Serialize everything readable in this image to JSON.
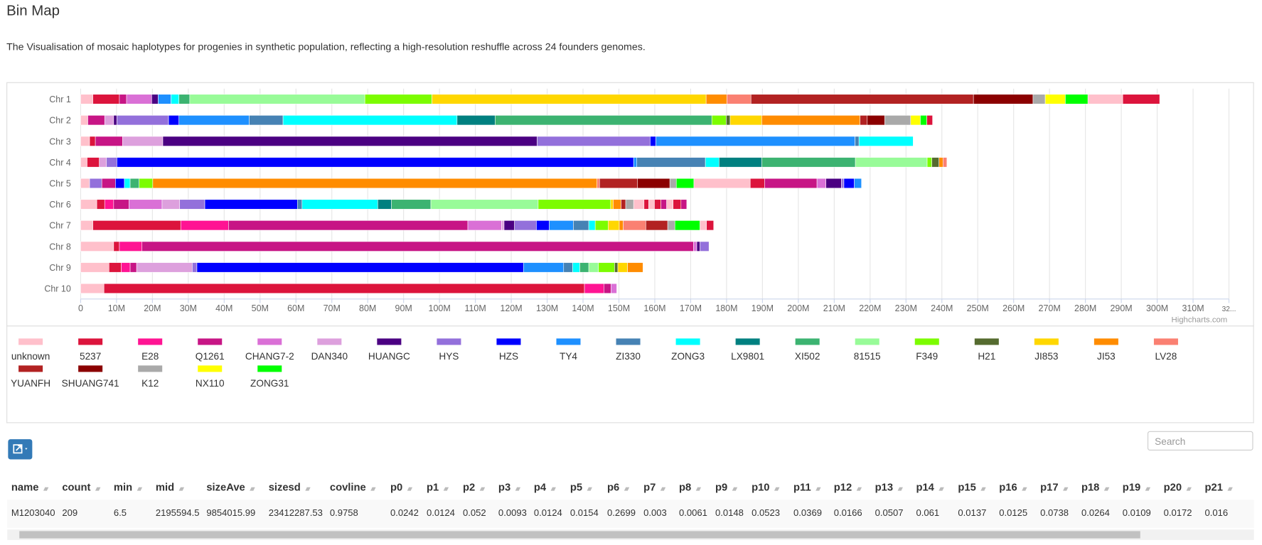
{
  "header": {
    "title": "Bin Map",
    "description": "The Visualisation of mosaic haplotypes for progenies in synthetic population, reflecting a high-resolution reshuffle across 24 founders genomes."
  },
  "chart_data": {
    "type": "bar",
    "orientation": "horizontal",
    "stacked": true,
    "credit": "Highcharts.com",
    "categories": [
      "Chr 1",
      "Chr 2",
      "Chr 3",
      "Chr 4",
      "Chr 5",
      "Chr 6",
      "Chr 7",
      "Chr 8",
      "Chr 9",
      "Chr 10"
    ],
    "xlim": [
      0,
      320
    ],
    "xticks": [
      0,
      {
        "value": 10,
        "label": "10M"
      },
      {
        "value": 20,
        "label": "20M"
      },
      {
        "value": 30,
        "label": "30M"
      },
      {
        "value": 40,
        "label": "40M"
      },
      {
        "value": 50,
        "label": "50M"
      },
      {
        "value": 60,
        "label": "60M"
      },
      {
        "value": 70,
        "label": "70M"
      },
      {
        "value": 80,
        "label": "80M"
      },
      {
        "value": 90,
        "label": "90M"
      },
      {
        "value": 100,
        "label": "100M"
      },
      {
        "value": 110,
        "label": "110M"
      },
      {
        "value": 120,
        "label": "120M"
      },
      {
        "value": 130,
        "label": "130M"
      },
      {
        "value": 140,
        "label": "140M"
      },
      {
        "value": 150,
        "label": "150M"
      },
      {
        "value": 160,
        "label": "160M"
      },
      {
        "value": 170,
        "label": "170M"
      },
      {
        "value": 180,
        "label": "180M"
      },
      {
        "value": 190,
        "label": "190M"
      },
      {
        "value": 200,
        "label": "200M"
      },
      {
        "value": 210,
        "label": "210M"
      },
      {
        "value": 220,
        "label": "220M"
      },
      {
        "value": 230,
        "label": "230M"
      },
      {
        "value": 240,
        "label": "240M"
      },
      {
        "value": 250,
        "label": "250M"
      },
      {
        "value": 260,
        "label": "260M"
      },
      {
        "value": 270,
        "label": "270M"
      },
      {
        "value": 280,
        "label": "280M"
      },
      {
        "value": 290,
        "label": "290M"
      },
      {
        "value": 300,
        "label": "300M"
      },
      {
        "value": 310,
        "label": "310M"
      },
      {
        "value": 320,
        "label": "32..."
      }
    ],
    "grid": true,
    "founders": [
      {
        "name": "unknown",
        "color": "#ffc0cb"
      },
      {
        "name": "5237",
        "color": "#dc143c"
      },
      {
        "name": "E28",
        "color": "#ff1493"
      },
      {
        "name": "Q1261",
        "color": "#c71585"
      },
      {
        "name": "CHANG7-2",
        "color": "#da70d6"
      },
      {
        "name": "DAN340",
        "color": "#dda0dd"
      },
      {
        "name": "HUANGC",
        "color": "#4b0082"
      },
      {
        "name": "HYS",
        "color": "#9370db"
      },
      {
        "name": "HZS",
        "color": "#0000ff"
      },
      {
        "name": "TY4",
        "color": "#1e90ff"
      },
      {
        "name": "ZI330",
        "color": "#4682b4"
      },
      {
        "name": "ZONG3",
        "color": "#00ffff"
      },
      {
        "name": "LX9801",
        "color": "#008080"
      },
      {
        "name": "XI502",
        "color": "#3cb371"
      },
      {
        "name": "81515",
        "color": "#98fb98"
      },
      {
        "name": "F349",
        "color": "#7cfc00"
      },
      {
        "name": "H21",
        "color": "#556b2f"
      },
      {
        "name": "JI853",
        "color": "#ffd700"
      },
      {
        "name": "JI53",
        "color": "#ff8c00"
      },
      {
        "name": "LV28",
        "color": "#fa8072"
      },
      {
        "name": "YUANFH",
        "color": "#b22222"
      },
      {
        "name": "SHUANG741",
        "color": "#8b0000"
      },
      {
        "name": "K12",
        "color": "#a9a9a9"
      },
      {
        "name": "NX110",
        "color": "#ffff00"
      },
      {
        "name": "ZONG31",
        "color": "#00ff00"
      }
    ],
    "segments": [
      [
        {
          "founder": "unknown",
          "value": 3.4
        },
        {
          "founder": "5237",
          "value": 7.4
        },
        {
          "founder": "Q1261",
          "value": 2
        },
        {
          "founder": "CHANG7-2",
          "value": 7
        },
        {
          "founder": "HUANGC",
          "value": 1.8
        },
        {
          "founder": "TY4",
          "value": 3.6
        },
        {
          "founder": "ZONG3",
          "value": 2.2
        },
        {
          "founder": "XI502",
          "value": 3
        },
        {
          "founder": "81515",
          "value": 48.8
        },
        {
          "founder": "F349",
          "value": 18.7
        },
        {
          "founder": "JI853",
          "value": 76.4
        },
        {
          "founder": "JI53",
          "value": 5.8
        },
        {
          "founder": "LV28",
          "value": 6.7
        },
        {
          "founder": "YUANFH",
          "value": 62
        },
        {
          "founder": "SHUANG741",
          "value": 16.6
        },
        {
          "founder": "K12",
          "value": 3.4
        },
        {
          "founder": "NX110",
          "value": 5.6
        },
        {
          "founder": "ZONG31",
          "value": 6.3
        },
        {
          "founder": "unknown",
          "value": 9.7
        },
        {
          "founder": "5237",
          "value": 10.3
        }
      ],
      [
        {
          "founder": "unknown",
          "value": 2
        },
        {
          "founder": "Q1261",
          "value": 4.7
        },
        {
          "founder": "DAN340",
          "value": 2.5
        },
        {
          "founder": "HUANGC",
          "value": 0.9
        },
        {
          "founder": "HYS",
          "value": 14.4
        },
        {
          "founder": "HZS",
          "value": 2.9
        },
        {
          "founder": "TY4",
          "value": 19.6
        },
        {
          "founder": "ZI330",
          "value": 9.4
        },
        {
          "founder": "ZONG3",
          "value": 48.5
        },
        {
          "founder": "LX9801",
          "value": 10.6
        },
        {
          "founder": "XI502",
          "value": 60.4
        },
        {
          "founder": "F349",
          "value": 4
        },
        {
          "founder": "H21",
          "value": 1.1
        },
        {
          "founder": "JI853",
          "value": 8.8
        },
        {
          "founder": "JI53",
          "value": 27.4
        },
        {
          "founder": "YUANFH",
          "value": 2
        },
        {
          "founder": "SHUANG741",
          "value": 4.9
        },
        {
          "founder": "K12",
          "value": 7.2
        },
        {
          "founder": "NX110",
          "value": 2.7
        },
        {
          "founder": "ZONG31",
          "value": 1.8
        },
        {
          "founder": "5237",
          "value": 1.6
        }
      ],
      [
        {
          "founder": "unknown",
          "value": 2.5
        },
        {
          "founder": "5237",
          "value": 1.6
        },
        {
          "founder": "Q1261",
          "value": 7.6
        },
        {
          "founder": "DAN340",
          "value": 11.2
        },
        {
          "founder": "HUANGC",
          "value": 104.3
        },
        {
          "founder": "HYS",
          "value": 31.5
        },
        {
          "founder": "HZS",
          "value": 1.6
        },
        {
          "founder": "TY4",
          "value": 55.5
        },
        {
          "founder": "ZI330",
          "value": 1.1
        },
        {
          "founder": "ZONG3",
          "value": 15.1
        }
      ],
      [
        {
          "founder": "unknown",
          "value": 1.8
        },
        {
          "founder": "5237",
          "value": 3.4
        },
        {
          "founder": "DAN340",
          "value": 2
        },
        {
          "founder": "HYS",
          "value": 2.9
        },
        {
          "founder": "HZS",
          "value": 144
        },
        {
          "founder": "TY4",
          "value": 0.9
        },
        {
          "founder": "ZI330",
          "value": 19.1
        },
        {
          "founder": "ZONG3",
          "value": 3.8
        },
        {
          "founder": "LX9801",
          "value": 11.9
        },
        {
          "founder": "XI502",
          "value": 26.1
        },
        {
          "founder": "81515",
          "value": 20
        },
        {
          "founder": "F349",
          "value": 1.3
        },
        {
          "founder": "H21",
          "value": 2
        },
        {
          "founder": "JI53",
          "value": 1.1
        },
        {
          "founder": "LV28",
          "value": 1.1
        }
      ],
      [
        {
          "founder": "unknown",
          "value": 2.5
        },
        {
          "founder": "HYS",
          "value": 3.4
        },
        {
          "founder": "Q1261",
          "value": 3.8
        },
        {
          "founder": "HZS",
          "value": 2.5
        },
        {
          "founder": "ZONG3",
          "value": 1.6
        },
        {
          "founder": "XI502",
          "value": 2.5
        },
        {
          "founder": "F349",
          "value": 3.8
        },
        {
          "founder": "JI53",
          "value": 123.8
        },
        {
          "founder": "LV28",
          "value": 0.7
        },
        {
          "founder": "YUANFH",
          "value": 10.6
        },
        {
          "founder": "SHUANG741",
          "value": 9
        },
        {
          "founder": "K12",
          "value": 1.8
        },
        {
          "founder": "ZONG31",
          "value": 4.9
        },
        {
          "founder": "unknown",
          "value": 15.7
        },
        {
          "founder": "5237",
          "value": 4
        },
        {
          "founder": "Q1261",
          "value": 14.6
        },
        {
          "founder": "CHANG7-2",
          "value": 2.5
        },
        {
          "founder": "HUANGC",
          "value": 4.3
        },
        {
          "founder": "HYS",
          "value": 0.7
        },
        {
          "founder": "HZS",
          "value": 2.9
        },
        {
          "founder": "TY4",
          "value": 2
        }
      ],
      [
        {
          "founder": "unknown",
          "value": 4.5
        },
        {
          "founder": "5237",
          "value": 2.2
        },
        {
          "founder": "E28",
          "value": 2.5
        },
        {
          "founder": "Q1261",
          "value": 4.3
        },
        {
          "founder": "CHANG7-2",
          "value": 9.2
        },
        {
          "founder": "DAN340",
          "value": 4.9
        },
        {
          "founder": "HYS",
          "value": 7
        },
        {
          "founder": "HZS",
          "value": 25.8
        },
        {
          "founder": "ZI330",
          "value": 1.3
        },
        {
          "founder": "ZONG3",
          "value": 21.1
        },
        {
          "founder": "LX9801",
          "value": 3.8
        },
        {
          "founder": "XI502",
          "value": 11
        },
        {
          "founder": "81515",
          "value": 29.9
        },
        {
          "founder": "F349",
          "value": 20.2
        },
        {
          "founder": "JI853",
          "value": 0.7
        },
        {
          "founder": "JI53",
          "value": 2.2
        },
        {
          "founder": "YUANFH",
          "value": 1.3
        },
        {
          "founder": "K12",
          "value": 2.2
        },
        {
          "founder": "unknown",
          "value": 2.9
        },
        {
          "founder": "5237",
          "value": 1.3
        },
        {
          "founder": "unknown",
          "value": 1.6
        },
        {
          "founder": "5237",
          "value": 1.8
        },
        {
          "founder": "Q1261",
          "value": 1.6
        },
        {
          "founder": "unknown",
          "value": 1.8
        },
        {
          "founder": "5237",
          "value": 2.2
        },
        {
          "founder": "Q1261",
          "value": 1.6
        }
      ],
      [
        {
          "founder": "unknown",
          "value": 3.4
        },
        {
          "founder": "5237",
          "value": 24.5
        },
        {
          "founder": "E28",
          "value": 13.3
        },
        {
          "founder": "Q1261",
          "value": 66.7
        },
        {
          "founder": "CHANG7-2",
          "value": 9.4
        },
        {
          "founder": "DAN340",
          "value": 0.7
        },
        {
          "founder": "HUANGC",
          "value": 2.9
        },
        {
          "founder": "HYS",
          "value": 6.1
        },
        {
          "founder": "HZS",
          "value": 3.6
        },
        {
          "founder": "TY4",
          "value": 6.7
        },
        {
          "founder": "ZI330",
          "value": 4.3
        },
        {
          "founder": "ZONG3",
          "value": 1.8
        },
        {
          "founder": "F349",
          "value": 3.6
        },
        {
          "founder": "JI853",
          "value": 3.1
        },
        {
          "founder": "JI53",
          "value": 1.1
        },
        {
          "founder": "LV28",
          "value": 6.3
        },
        {
          "founder": "YUANFH",
          "value": 6.1
        },
        {
          "founder": "K12",
          "value": 2
        },
        {
          "founder": "ZONG31",
          "value": 7
        },
        {
          "founder": "unknown",
          "value": 1.8
        },
        {
          "founder": "5237",
          "value": 2
        }
      ],
      [
        {
          "founder": "unknown",
          "value": 9.2
        },
        {
          "founder": "5237",
          "value": 1.6
        },
        {
          "founder": "E28",
          "value": 6.3
        },
        {
          "founder": "Q1261",
          "value": 153.7
        },
        {
          "founder": "CHANG7-2",
          "value": 0.9
        },
        {
          "founder": "HUANGC",
          "value": 0.9
        },
        {
          "founder": "HYS",
          "value": 2.5
        }
      ],
      [
        {
          "founder": "unknown",
          "value": 7.9
        },
        {
          "founder": "5237",
          "value": 3.4
        },
        {
          "founder": "E28",
          "value": 2.5
        },
        {
          "founder": "Q1261",
          "value": 1.8
        },
        {
          "founder": "DAN340",
          "value": 15.5
        },
        {
          "founder": "HYS",
          "value": 1.3
        },
        {
          "founder": "HZS",
          "value": 91
        },
        {
          "founder": "TY4",
          "value": 11.2
        },
        {
          "founder": "ZI330",
          "value": 2.5
        },
        {
          "founder": "ZONG3",
          "value": 2
        },
        {
          "founder": "XI502",
          "value": 2.5
        },
        {
          "founder": "81515",
          "value": 2.7
        },
        {
          "founder": "F349",
          "value": 4.5
        },
        {
          "founder": "H21",
          "value": 0.9
        },
        {
          "founder": "JI853",
          "value": 2.7
        },
        {
          "founder": "JI53",
          "value": 4.3
        }
      ],
      [
        {
          "founder": "unknown",
          "value": 6.5
        },
        {
          "founder": "5237",
          "value": 133.9
        },
        {
          "founder": "E28",
          "value": 5.4
        },
        {
          "founder": "Q1261",
          "value": 2
        },
        {
          "founder": "CHANG7-2",
          "value": 1.6
        }
      ]
    ]
  },
  "table": {
    "search": "Search",
    "columns": [
      "name",
      "count",
      "min",
      "mid",
      "sizeAve",
      "sizesd",
      "covline",
      "p0",
      "p1",
      "p2",
      "p3",
      "p4",
      "p5",
      "p6",
      "p7",
      "p8",
      "p9",
      "p10",
      "p11",
      "p12",
      "p13",
      "p14",
      "p15",
      "p16",
      "p17",
      "p18",
      "p19",
      "p20",
      "p21"
    ],
    "rows": [
      [
        "M1203040",
        209,
        6.5,
        2195594.5,
        9854015.99,
        23412287.53,
        0.9758,
        0.0242,
        0.0124,
        0.052,
        0.0093,
        0.0124,
        0.0154,
        0.2699,
        0.003,
        0.0061,
        0.0148,
        0.0523,
        0.0369,
        0.0166,
        0.0507,
        0.061,
        0.0137,
        0.0125,
        0.0738,
        0.0264,
        0.0109,
        0.0172,
        0.016
      ]
    ]
  }
}
